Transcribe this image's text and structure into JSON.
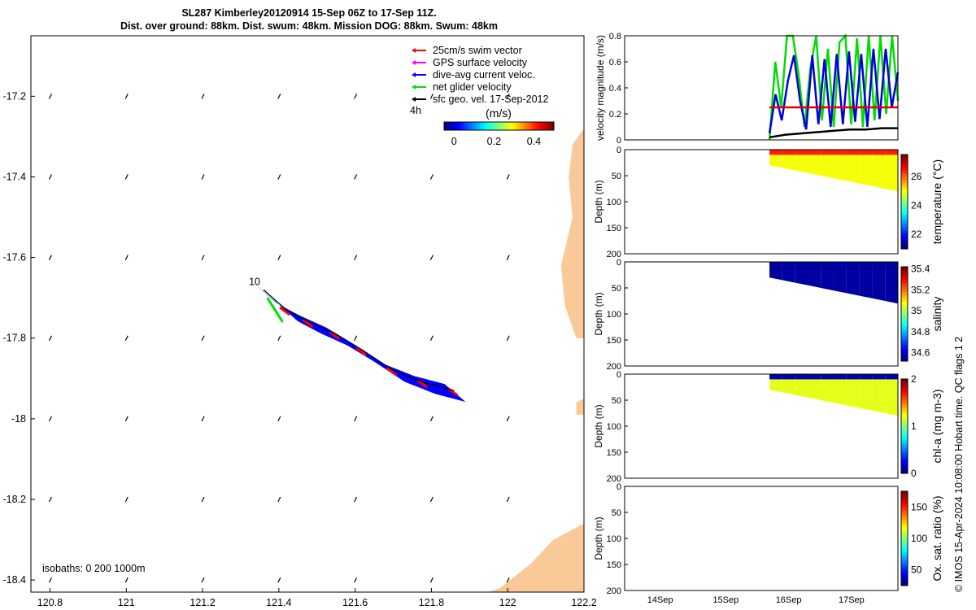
{
  "title": {
    "line1": "SL287 Kimberley20120914 15-Sep 06Z to 17-Sep 11Z.",
    "line2": "Dist. over ground: 88km. Dist. swum: 48km. Mission DOG: 88km. Swum: 48km"
  },
  "map": {
    "xticks": [
      "120.8",
      "121",
      "121.2",
      "121.4",
      "121.6",
      "121.8",
      "122",
      "122.2"
    ],
    "xtick_values": [
      120.8,
      121.0,
      121.2,
      121.4,
      121.6,
      121.8,
      122.0,
      122.2
    ],
    "yticks": [
      "-17.2",
      "-17.4",
      "-17.6",
      "-17.8",
      "-18",
      "-18.2",
      "-18.4"
    ],
    "ytick_values": [
      -17.2,
      -17.4,
      -17.6,
      -17.8,
      -18.0,
      -18.2,
      -18.4
    ],
    "xlim": [
      120.75,
      122.2
    ],
    "ylim": [
      -18.43,
      -17.05
    ],
    "legend": [
      {
        "label": "25cm/s swim vector",
        "color": "#ff0000"
      },
      {
        "label": "GPS surface velocity",
        "color": "#ff00ff"
      },
      {
        "label": "dive-avg current veloc.",
        "color": "#0000ff"
      },
      {
        "label": "net glider velocity",
        "color": "#00e000"
      },
      {
        "label": "sfc geo. vel. 17-Sep-2012",
        "color": "#000000"
      }
    ],
    "legend_extra": "4h",
    "colorbar": {
      "label": "(m/s)",
      "ticks": [
        "0",
        "0.2",
        "0.4"
      ],
      "tick_values": [
        0,
        0.2,
        0.4
      ],
      "range": [
        -0.05,
        0.5
      ]
    },
    "isobaths_label": "isobaths: 0   200  1000m",
    "track_label": "10",
    "track_lon": [
      121.36,
      121.42,
      121.48,
      121.55,
      121.62,
      121.7,
      121.78,
      121.86
    ],
    "track_lat": [
      -17.68,
      -17.73,
      -17.76,
      -17.79,
      -17.83,
      -17.88,
      -17.91,
      -17.93
    ],
    "land_color": "#f9c997"
  },
  "chart_data": [
    {
      "type": "line",
      "ylabel": "velocity magnitude (m/s)",
      "ylim": [
        0,
        0.8
      ],
      "yticks": [
        "0",
        "0.2",
        "0.4",
        "0.6",
        "0.8"
      ],
      "ytick_values": [
        0,
        0.2,
        0.4,
        0.6,
        0.8
      ],
      "x_start_fraction": 0.53,
      "series": [
        {
          "color": "#00dd00",
          "values": [
            0,
            0.6,
            0.25,
            0.8,
            0.8,
            0.5,
            0.1,
            0.55,
            0.8,
            0.15,
            0.7,
            0.1,
            0.75,
            0.8,
            0.12,
            0.78,
            0.1,
            0.8,
            0.15,
            0.8,
            0.2,
            0.8,
            0.3
          ]
        },
        {
          "color": "#0000dd",
          "values": [
            0.05,
            0.35,
            0.15,
            0.45,
            0.65,
            0.3,
            0.08,
            0.65,
            0.12,
            0.62,
            0.1,
            0.66,
            0.12,
            0.68,
            0.14,
            0.66,
            0.1,
            0.7,
            0.16,
            0.7,
            0.25,
            0.52
          ]
        },
        {
          "color": "#dd0000",
          "values": [
            0.25,
            0.25,
            0.25,
            0.25,
            0.25
          ]
        },
        {
          "color": "#000000",
          "values": [
            0.02,
            0.04,
            0.05,
            0.06,
            0.07,
            0.08,
            0.08,
            0.09,
            0.09
          ]
        }
      ]
    },
    {
      "type": "heatmap",
      "variable": "temperature",
      "cbar_label": "temperature (°C)",
      "clim": [
        21,
        27.5
      ],
      "cticks": [
        "22",
        "24",
        "26"
      ],
      "ctick_values": [
        22,
        24,
        26
      ],
      "surface_value": 26.5,
      "deep_value": 25.0
    },
    {
      "type": "heatmap",
      "variable": "salinity",
      "cbar_label": "salinity",
      "clim": [
        34.52,
        35.42
      ],
      "cticks": [
        "34.6",
        "34.8",
        "35",
        "35.2",
        "35.4"
      ],
      "ctick_values": [
        34.6,
        34.8,
        35.0,
        35.2,
        35.4
      ],
      "surface_value": 34.55,
      "deep_value": 34.55
    },
    {
      "type": "heatmap",
      "variable": "chl-a",
      "cbar_label": "chl-a (mg m-3)",
      "clim": [
        0,
        2
      ],
      "cticks": [
        "0",
        "1",
        "2"
      ],
      "ctick_values": [
        0,
        1,
        2
      ],
      "surface_value": 0.1,
      "deep_value": 1.2
    },
    {
      "type": "heatmap",
      "variable": "oxygen",
      "cbar_label": "Ox. sat. ratio (%)",
      "clim": [
        25,
        175
      ],
      "cticks": [
        "50",
        "100",
        "150"
      ],
      "ctick_values": [
        50,
        100,
        150
      ],
      "surface_value": null,
      "deep_value": null
    }
  ],
  "profiles": {
    "ylabel": "Depth (m)",
    "ylim": [
      0,
      200
    ],
    "yticks": [
      "0",
      "50",
      "100",
      "150",
      "200"
    ],
    "ytick_values": [
      0,
      50,
      100,
      150,
      200
    ],
    "xticks": [
      "14Sep",
      "15Sep",
      "16Sep",
      "17Sep"
    ],
    "xtick_fractions": [
      0.13,
      0.37,
      0.6,
      0.83
    ],
    "data_start_fraction": 0.53,
    "depth_start": 30,
    "depth_end": 80
  },
  "stamp": "© IMOS 15-Apr-2024 10:08:00 Hobart time. QC flags 1  2"
}
